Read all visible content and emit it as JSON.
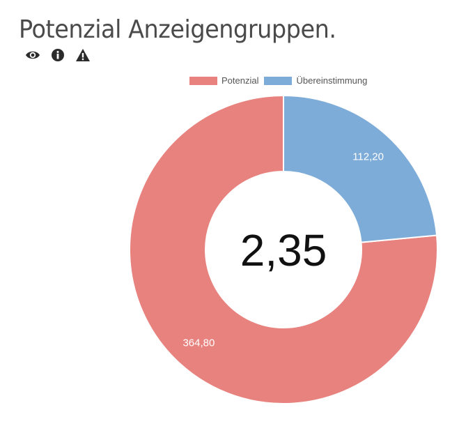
{
  "header": {
    "title": "Potenzial Anzeigengruppen.",
    "icons": [
      "eye-icon",
      "info-icon",
      "warning-icon"
    ]
  },
  "chart_data": {
    "type": "pie",
    "title": "Potenzial Anzeigengruppen.",
    "donut": true,
    "center_label": "2,35",
    "legend_position": "top",
    "series": [
      {
        "name": "Potenzial",
        "value": 364.8,
        "label": "364,80",
        "color": "#e8827e"
      },
      {
        "name": "Übereinstimmung",
        "value": 112.2,
        "label": "112,20",
        "color": "#7eacd9"
      }
    ]
  }
}
